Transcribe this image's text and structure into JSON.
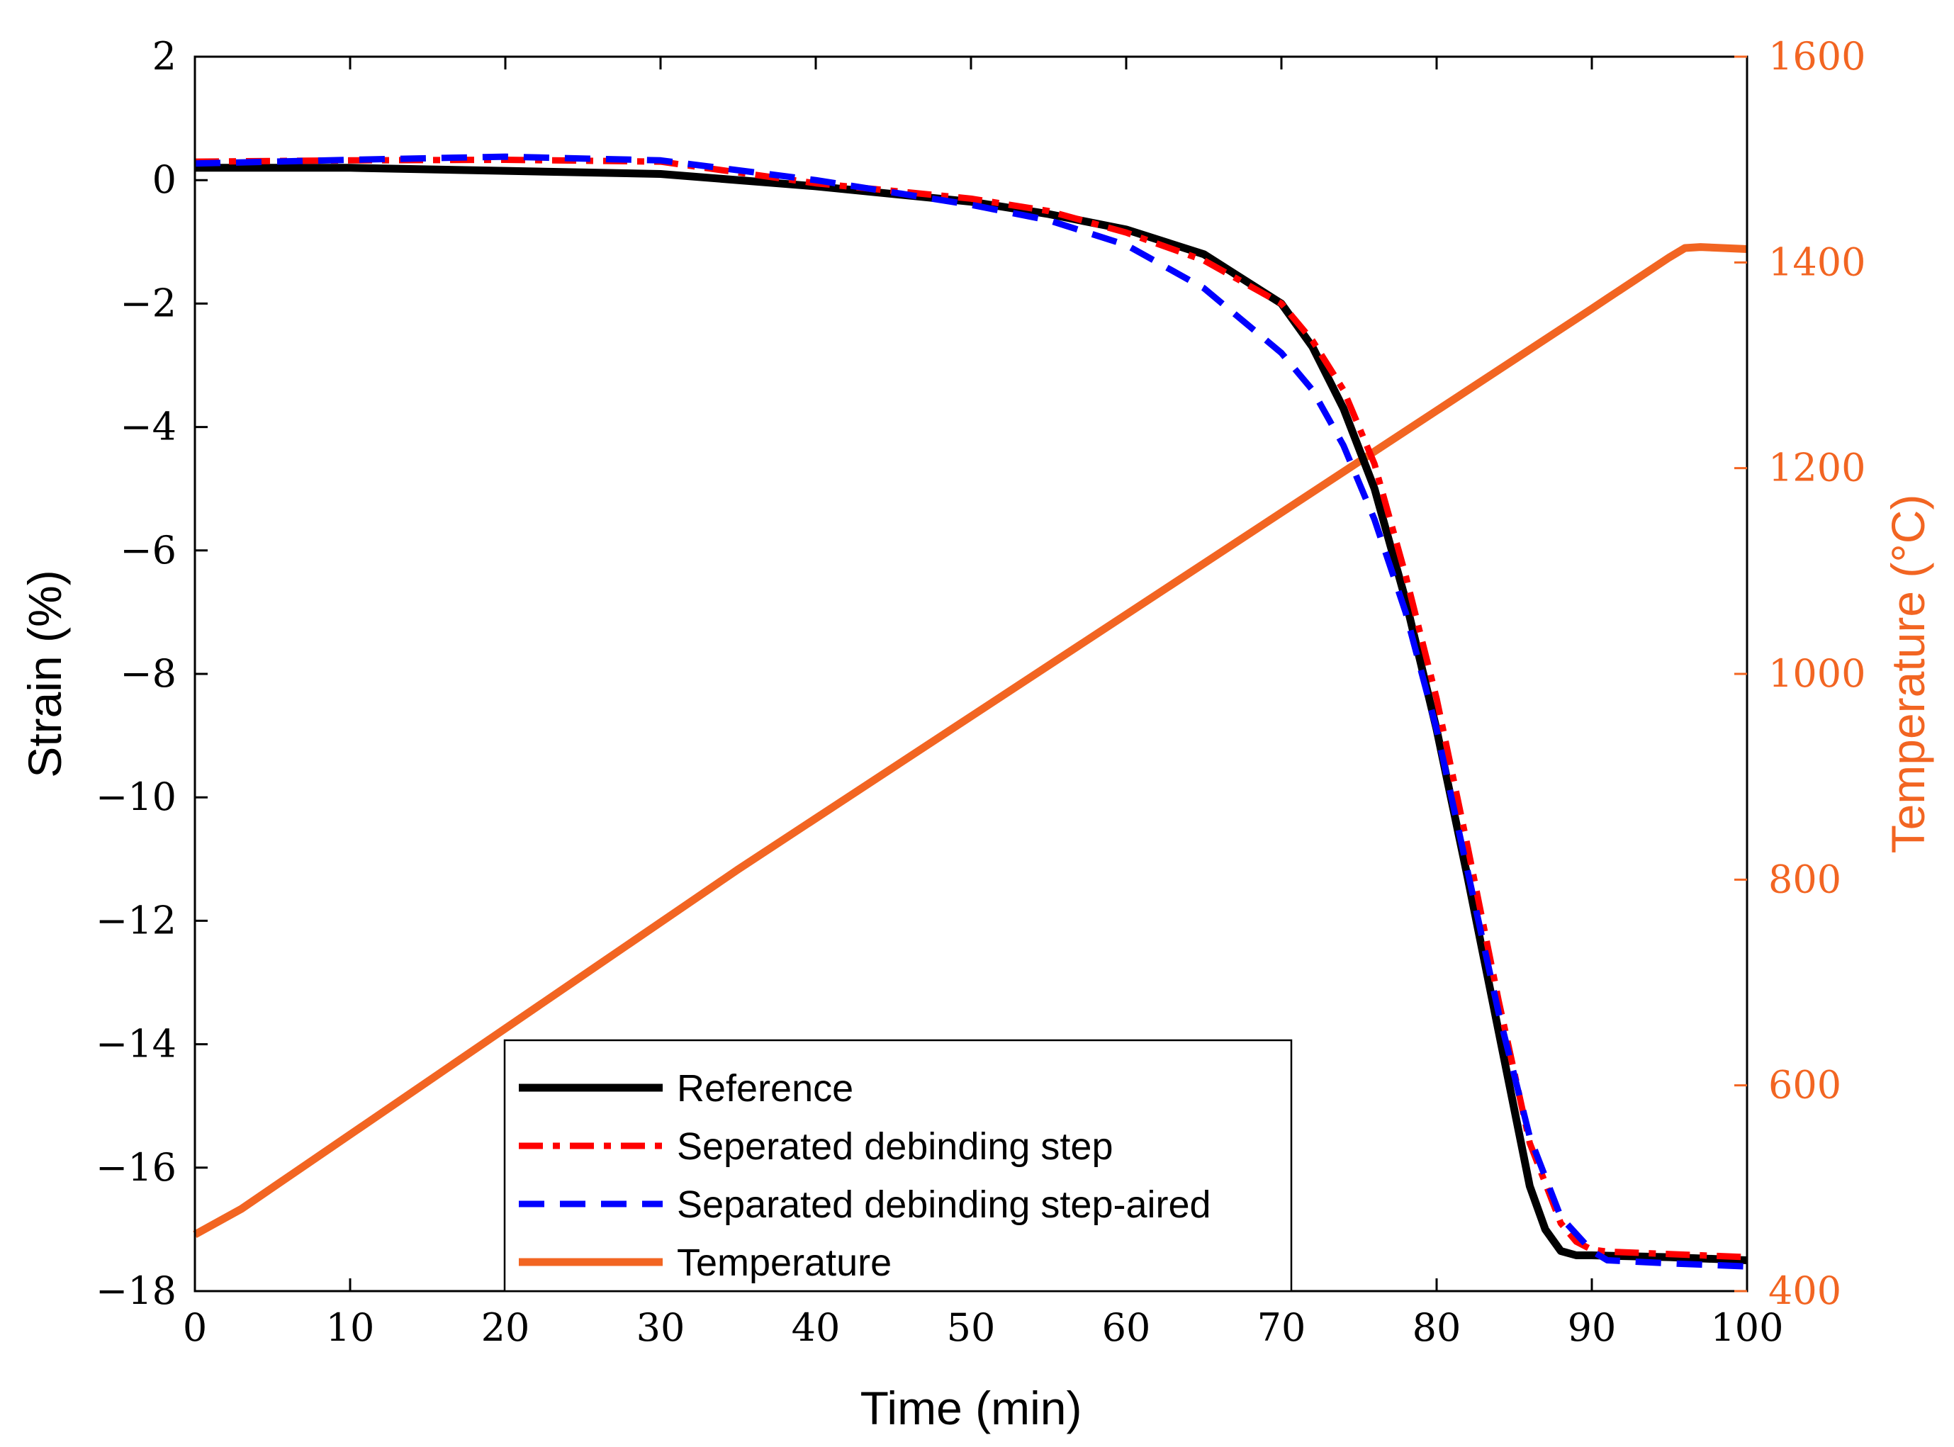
{
  "chart_data": {
    "type": "line",
    "title": "",
    "xlabel": "Time (min)",
    "ylabel": "Strain (%)",
    "y2label": "Temperature (°C)",
    "xlim": [
      0,
      100
    ],
    "ylim": [
      -18,
      2
    ],
    "y2lim": [
      400,
      1600
    ],
    "xticks": [
      0,
      10,
      20,
      30,
      40,
      50,
      60,
      70,
      80,
      90,
      100
    ],
    "yticks": [
      2,
      0,
      -2,
      -4,
      -6,
      -8,
      -10,
      -12,
      -14,
      -16,
      -18
    ],
    "y2ticks": [
      1600,
      1400,
      1200,
      1000,
      800,
      600,
      400
    ],
    "xtick_labels": [
      "0",
      "10",
      "20",
      "30",
      "40",
      "50",
      "60",
      "70",
      "80",
      "90",
      "100"
    ],
    "ytick_labels": [
      "2",
      "0",
      "−2",
      "−4",
      "−6",
      "−8",
      "−10",
      "−12",
      "−14",
      "−16",
      "−18"
    ],
    "y2tick_labels": [
      "1600",
      "1400",
      "1200",
      "1000",
      "800",
      "600",
      "400"
    ],
    "grid": false,
    "legend_position": "bottom-center",
    "series": [
      {
        "name": "Reference",
        "axis": "left",
        "color": "#000000",
        "style": "solid",
        "x": [
          0,
          10,
          20,
          30,
          40,
          50,
          55,
          60,
          65,
          70,
          72,
          74,
          76,
          78,
          80,
          82,
          84,
          86,
          87,
          88,
          89,
          90,
          95,
          100
        ],
        "y": [
          0.2,
          0.2,
          0.15,
          0.1,
          -0.1,
          -0.35,
          -0.55,
          -0.8,
          -1.2,
          -2.0,
          -2.7,
          -3.7,
          -5.0,
          -6.8,
          -8.9,
          -11.3,
          -13.8,
          -16.3,
          -17.0,
          -17.35,
          -17.42,
          -17.42,
          -17.45,
          -17.5
        ]
      },
      {
        "name": "Seperated debinding step",
        "axis": "left",
        "color": "#ff0000",
        "style": "dashdot",
        "x": [
          0,
          10,
          20,
          30,
          40,
          50,
          55,
          60,
          65,
          70,
          72,
          74,
          76,
          78,
          80,
          82,
          84,
          86,
          88,
          89,
          90,
          91,
          95,
          100
        ],
        "y": [
          0.3,
          0.32,
          0.33,
          0.3,
          -0.05,
          -0.3,
          -0.5,
          -0.85,
          -1.3,
          -2.0,
          -2.6,
          -3.4,
          -4.6,
          -6.4,
          -8.4,
          -10.8,
          -13.3,
          -15.6,
          -16.9,
          -17.2,
          -17.33,
          -17.36,
          -17.4,
          -17.45
        ]
      },
      {
        "name": "Separated debinding step-aired",
        "axis": "left",
        "color": "#0000ff",
        "style": "dashed",
        "x": [
          0,
          10,
          20,
          30,
          40,
          50,
          55,
          60,
          65,
          70,
          72,
          74,
          76,
          78,
          80,
          82,
          84,
          86,
          88,
          90,
          91,
          95,
          100
        ],
        "y": [
          0.27,
          0.33,
          0.38,
          0.32,
          0.0,
          -0.4,
          -0.65,
          -1.05,
          -1.75,
          -2.8,
          -3.4,
          -4.3,
          -5.5,
          -7.0,
          -8.9,
          -11.2,
          -13.5,
          -15.5,
          -16.8,
          -17.35,
          -17.5,
          -17.55,
          -17.6
        ]
      },
      {
        "name": "Temperature",
        "axis": "right",
        "color": "#f26522",
        "style": "solid",
        "x": [
          0,
          3,
          35,
          90,
          91,
          95,
          96,
          97,
          100
        ],
        "y": [
          455,
          480,
          810,
          1355,
          1365,
          1405,
          1414,
          1415,
          1413
        ]
      }
    ]
  }
}
